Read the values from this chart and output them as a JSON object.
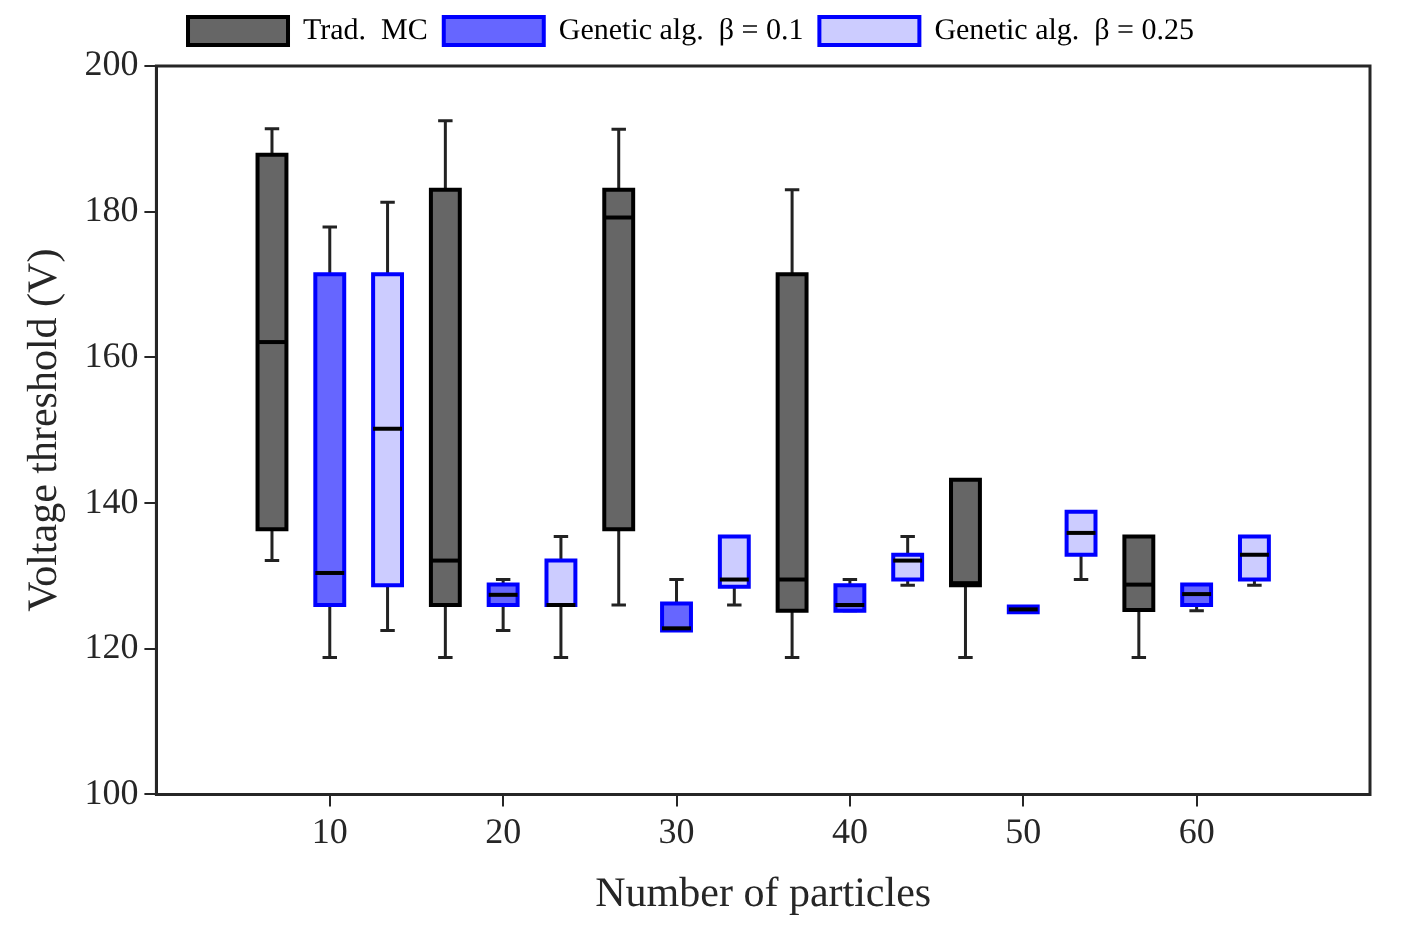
{
  "chart_data": {
    "type": "box",
    "xlabel": "Number of particles",
    "ylabel": "Voltage threshold (V)",
    "x": [
      10,
      20,
      30,
      40,
      50,
      60
    ],
    "xlim": [
      0,
      70
    ],
    "xticks": [
      10,
      20,
      30,
      40,
      50,
      60
    ],
    "ylim": [
      100,
      200
    ],
    "yticks": [
      100,
      120,
      140,
      160,
      180,
      200
    ],
    "grid": false,
    "legend": "top",
    "series": [
      {
        "name": "Trad.  MC",
        "color": "#666666",
        "boxes": [
          {
            "low": 132.1,
            "q1": 136.4,
            "median": 162.1,
            "q3": 187.8,
            "high": 191.4
          },
          {
            "low": 118.8,
            "q1": 126.0,
            "median": 132.1,
            "q3": 183.0,
            "high": 192.5
          },
          {
            "low": 126.0,
            "q1": 136.4,
            "median": 179.2,
            "q3": 183.0,
            "high": 191.3
          },
          {
            "low": 118.8,
            "q1": 125.2,
            "median": 129.5,
            "q3": 171.4,
            "high": 183.0
          },
          {
            "low": 118.8,
            "q1": 128.7,
            "median": 129.0,
            "q3": 143.2,
            "high": 143.2
          },
          {
            "low": 118.8,
            "q1": 125.3,
            "median": 128.8,
            "q3": 135.4,
            "high": 135.4
          }
        ]
      },
      {
        "name": "Genetic alg.  β = 0.1",
        "color": "#6666ff",
        "boxes": [
          {
            "low": 118.8,
            "q1": 126.0,
            "median": 130.4,
            "q3": 171.4,
            "high": 177.9
          },
          {
            "low": 122.5,
            "q1": 126.0,
            "median": 127.4,
            "q3": 128.8,
            "high": 129.5
          },
          {
            "low": 122.5,
            "q1": 122.5,
            "median": 122.8,
            "q3": 126.2,
            "high": 129.5
          },
          {
            "low": 125.2,
            "q1": 125.2,
            "median": 126.0,
            "q3": 128.7,
            "high": 129.5
          },
          {
            "low": 125.0,
            "q1": 125.0,
            "median": 125.4,
            "q3": 125.8,
            "high": 125.8
          },
          {
            "low": 125.2,
            "q1": 126.0,
            "median": 127.5,
            "q3": 128.8,
            "high": 128.8
          }
        ]
      },
      {
        "name": "Genetic alg.  β = 0.25",
        "color": "#ccccff",
        "boxes": [
          {
            "low": 122.5,
            "q1": 128.7,
            "median": 150.2,
            "q3": 171.4,
            "high": 181.3
          },
          {
            "low": 118.8,
            "q1": 126.0,
            "median": 126.0,
            "q3": 132.1,
            "high": 135.4
          },
          {
            "low": 126.0,
            "q1": 128.5,
            "median": 129.5,
            "q3": 135.4,
            "high": 135.4
          },
          {
            "low": 128.7,
            "q1": 129.5,
            "median": 132.1,
            "q3": 132.9,
            "high": 135.4
          },
          {
            "low": 129.5,
            "q1": 132.9,
            "median": 135.9,
            "q3": 138.8,
            "high": 138.8
          },
          {
            "low": 128.7,
            "q1": 129.5,
            "median": 132.9,
            "q3": 135.4,
            "high": 135.4
          }
        ]
      }
    ]
  }
}
